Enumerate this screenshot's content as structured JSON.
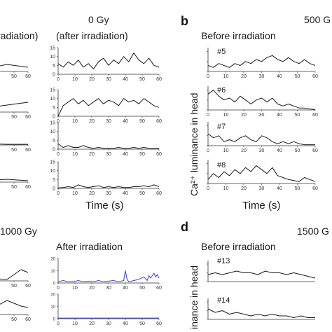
{
  "panel_labels": {
    "b": "b",
    "d": "d"
  },
  "headings": {
    "dose_a": "0 Gy",
    "after_a": "(after irradiation)",
    "before_a_cut": "radiation)",
    "before_b": "Before irradiation",
    "dose_b": "500 G",
    "dose_c": "1000 Gy",
    "after_c": "After irradiation",
    "before_d": "Before irradiation",
    "dose_d": "1500 G"
  },
  "axis_labels": {
    "time_a": "Time (s)",
    "time_b": "Time (s)",
    "ylabel_b": "Ca²⁺ luminance in head",
    "ylabel_d": "inance in head"
  },
  "colors": {
    "black_trace": "#1a1a1a",
    "blue_trace": "#3b3bd6",
    "axis": "#333333"
  },
  "chart_data": [
    {
      "type": "line",
      "panel": "a (after irradiation)",
      "x_ticks": [
        0,
        10,
        20,
        30,
        40,
        50,
        60
      ],
      "traces": [
        {
          "yticks": [
            0,
            5,
            10,
            15
          ],
          "ylim": [
            0,
            15
          ],
          "color": "black",
          "x": [
            0,
            3,
            6,
            9,
            12,
            15,
            18,
            21,
            24,
            27,
            30,
            33,
            36,
            39,
            42,
            45,
            48,
            51,
            54,
            57,
            60
          ],
          "values": [
            6,
            4,
            7,
            5,
            8,
            4,
            6,
            3,
            7,
            9,
            5,
            8,
            6,
            10,
            7,
            12,
            8,
            6,
            9,
            5,
            4
          ]
        },
        {
          "yticks": [
            0,
            5,
            10,
            15
          ],
          "ylim": [
            0,
            15
          ],
          "color": "black",
          "x": [
            0,
            3,
            6,
            9,
            12,
            15,
            18,
            21,
            24,
            27,
            30,
            33,
            36,
            39,
            42,
            45,
            48,
            51,
            54,
            57,
            60
          ],
          "values": [
            0,
            6,
            8,
            10,
            7,
            9,
            6,
            8,
            10,
            7,
            9,
            8,
            6,
            10,
            8,
            9,
            7,
            10,
            8,
            6,
            5
          ]
        },
        {
          "yticks": [
            0,
            5,
            10,
            15
          ],
          "ylim": [
            0,
            15
          ],
          "color": "black",
          "x": [
            0,
            3,
            6,
            9,
            12,
            15,
            18,
            21,
            24,
            27,
            30,
            33,
            36,
            39,
            42,
            45,
            48,
            51,
            54,
            57,
            60
          ],
          "values": [
            3,
            1,
            2,
            1,
            1,
            2,
            1,
            0.5,
            1,
            0.5,
            0.5,
            0.5,
            1,
            0.5,
            0.5,
            1,
            0.5,
            1,
            0.5,
            0.5,
            0.5
          ]
        },
        {
          "yticks": [
            0,
            5,
            10,
            15
          ],
          "ylim": [
            0,
            15
          ],
          "color": "black",
          "x": [
            0,
            3,
            6,
            9,
            12,
            15,
            18,
            21,
            24,
            27,
            30,
            33,
            36,
            39,
            42,
            45,
            48,
            51,
            54,
            57,
            60
          ],
          "values": [
            0.3,
            0.5,
            1,
            0.5,
            2,
            1,
            0.5,
            1,
            1.5,
            0.5,
            1,
            0.5,
            1,
            0.5,
            0.5,
            1,
            1,
            1.5,
            1,
            2,
            1
          ]
        }
      ]
    },
    {
      "type": "line",
      "panel": "b (before irradiation)",
      "x_ticks": [
        0,
        10,
        20,
        30,
        40,
        50,
        60
      ],
      "traces": [
        {
          "label": "#5",
          "color": "black",
          "x": [
            0,
            3,
            6,
            9,
            12,
            15,
            18,
            21,
            24,
            27,
            30,
            33,
            36,
            39,
            42,
            45,
            48,
            51,
            54,
            57,
            60
          ],
          "values": [
            3,
            2,
            4,
            3,
            2,
            4,
            3,
            5,
            4,
            6,
            5,
            7,
            8,
            6,
            5,
            7,
            5,
            4,
            6,
            4,
            3
          ]
        },
        {
          "label": "#6",
          "color": "black",
          "x": [
            0,
            3,
            6,
            9,
            12,
            15,
            18,
            21,
            24,
            27,
            30,
            33,
            36,
            39,
            42,
            45,
            48,
            51,
            54,
            57,
            60
          ],
          "values": [
            8,
            10,
            7,
            5,
            6,
            4,
            7,
            5,
            3,
            5,
            6,
            4,
            6,
            3,
            2,
            3,
            2,
            1,
            1,
            0.5,
            0.3
          ]
        },
        {
          "label": "#7",
          "color": "black",
          "x": [
            0,
            3,
            6,
            9,
            12,
            15,
            18,
            21,
            24,
            27,
            30,
            33,
            36,
            39,
            42,
            45,
            48,
            51,
            54,
            57,
            60
          ],
          "values": [
            6,
            4,
            5,
            2,
            3,
            2,
            4,
            5,
            3,
            2,
            5,
            4,
            2,
            1,
            2,
            1,
            2,
            1,
            0.5,
            0.5,
            0.5
          ]
        },
        {
          "label": "#8",
          "color": "black",
          "x": [
            0,
            3,
            6,
            9,
            12,
            15,
            18,
            21,
            24,
            27,
            30,
            33,
            36,
            39,
            42,
            45,
            48,
            51,
            54,
            57,
            60
          ],
          "values": [
            2,
            5,
            3,
            6,
            4,
            7,
            5,
            8,
            6,
            9,
            7,
            5,
            8,
            4,
            3,
            2,
            1.5,
            1,
            3,
            2,
            1
          ]
        }
      ]
    },
    {
      "type": "line",
      "panel": "c (after irradiation)",
      "x_ticks": [
        0,
        10,
        20,
        30,
        40,
        50,
        60
      ],
      "traces": [
        {
          "yticks": [
            0,
            10,
            20
          ],
          "ylim": [
            0,
            20
          ],
          "color": "blue",
          "x": [
            0,
            3,
            6,
            9,
            12,
            15,
            18,
            21,
            24,
            27,
            30,
            33,
            36,
            39,
            40,
            41,
            42,
            45,
            48,
            51,
            53,
            54,
            55,
            57,
            58,
            59,
            60
          ],
          "values": [
            1,
            2,
            1,
            1,
            2,
            1,
            1.5,
            1,
            2,
            1,
            1.5,
            2,
            1,
            2,
            10,
            3,
            1,
            2,
            3,
            5,
            2,
            6,
            4,
            8,
            5,
            7,
            4
          ]
        },
        {
          "yticks": [
            0,
            10,
            20
          ],
          "ylim": [
            0,
            20
          ],
          "color": "blue",
          "x": [
            0,
            10,
            20,
            30,
            40,
            50,
            60
          ],
          "values": [
            0.5,
            0.5,
            0.5,
            0.5,
            0.5,
            0.5,
            0.5
          ]
        }
      ]
    },
    {
      "type": "line",
      "panel": "d (before irradiation)",
      "x_ticks": [
        0,
        10,
        20,
        30,
        40,
        50,
        60
      ],
      "traces": [
        {
          "label": "#13",
          "color": "black",
          "x": [
            0,
            4,
            8,
            12,
            16,
            20,
            24,
            28,
            32,
            36,
            40,
            44,
            48,
            52,
            56,
            60
          ],
          "values": [
            4,
            5,
            4,
            5,
            6,
            5,
            5,
            4,
            6,
            5,
            5,
            4,
            5,
            4,
            3,
            2
          ]
        },
        {
          "label": "#14",
          "color": "black",
          "x": [
            0,
            4,
            8,
            12,
            16,
            20,
            24,
            28,
            32,
            36,
            40,
            44,
            48,
            52,
            56,
            60
          ],
          "values": [
            6,
            4,
            5,
            3,
            4,
            3,
            2,
            3,
            2,
            3,
            2,
            2,
            1,
            2,
            1,
            1
          ]
        }
      ]
    },
    {
      "type": "line",
      "panel": "a (before irradiation, cropped)",
      "x_ticks": [
        50,
        60
      ],
      "traces": [
        {
          "color": "black",
          "x": [
            0,
            15,
            30,
            45,
            60
          ],
          "values": [
            3,
            4,
            2,
            5,
            3
          ]
        },
        {
          "color": "black",
          "x": [
            0,
            15,
            30,
            45,
            60
          ],
          "values": [
            8,
            6,
            3,
            5,
            7
          ]
        },
        {
          "color": "black",
          "x": [
            0,
            15,
            30,
            45,
            60
          ],
          "values": [
            1,
            0.5,
            1,
            0.5,
            0.5
          ]
        },
        {
          "color": "black",
          "x": [
            0,
            15,
            30,
            45,
            60
          ],
          "values": [
            1,
            2,
            1,
            2,
            1
          ]
        }
      ]
    },
    {
      "type": "line",
      "panel": "c (before irradiation, cropped)",
      "x_ticks": [
        50,
        60
      ],
      "traces": [
        {
          "color": "black",
          "x": [
            0,
            15,
            30,
            45,
            55,
            60
          ],
          "values": [
            1,
            1,
            2,
            1,
            8,
            6
          ]
        },
        {
          "color": "black",
          "x": [
            0,
            15,
            30,
            45,
            55,
            60
          ],
          "values": [
            1,
            4,
            2,
            10,
            6,
            5
          ]
        }
      ]
    }
  ]
}
